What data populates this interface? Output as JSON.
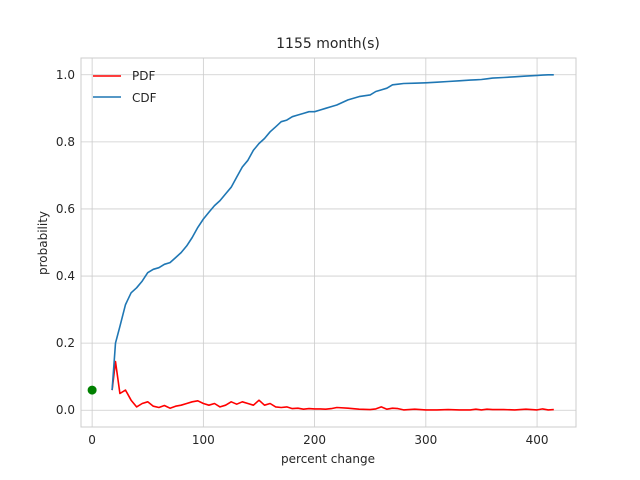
{
  "chart_data": {
    "type": "line",
    "title": "1155 month(s)",
    "xlabel": "percent change",
    "ylabel": "probability",
    "xlim": [
      -10,
      435
    ],
    "ylim": [
      -0.05,
      1.05
    ],
    "xticks": [
      0,
      100,
      200,
      300,
      400
    ],
    "yticks": [
      0.0,
      0.2,
      0.4,
      0.6,
      0.8,
      1.0
    ],
    "grid": true,
    "legend_position": "top-left",
    "series": [
      {
        "name": "PDF",
        "color": "#ff0000",
        "x": [
          18,
          21,
          25,
          30,
          35,
          40,
          45,
          50,
          55,
          60,
          65,
          70,
          75,
          80,
          85,
          90,
          95,
          100,
          105,
          110,
          115,
          120,
          125,
          130,
          135,
          140,
          145,
          150,
          155,
          160,
          165,
          170,
          175,
          180,
          185,
          190,
          195,
          200,
          205,
          210,
          215,
          220,
          230,
          240,
          250,
          255,
          260,
          265,
          270,
          275,
          280,
          290,
          300,
          310,
          320,
          330,
          340,
          345,
          350,
          355,
          360,
          370,
          380,
          390,
          400,
          405,
          410,
          415
        ],
        "y": [
          0.06,
          0.145,
          0.05,
          0.06,
          0.03,
          0.01,
          0.02,
          0.025,
          0.012,
          0.008,
          0.014,
          0.006,
          0.012,
          0.015,
          0.02,
          0.025,
          0.028,
          0.02,
          0.015,
          0.02,
          0.01,
          0.015,
          0.025,
          0.018,
          0.025,
          0.02,
          0.015,
          0.03,
          0.015,
          0.02,
          0.01,
          0.008,
          0.01,
          0.005,
          0.006,
          0.003,
          0.005,
          0.004,
          0.004,
          0.003,
          0.005,
          0.008,
          0.006,
          0.003,
          0.002,
          0.004,
          0.01,
          0.003,
          0.006,
          0.005,
          0.001,
          0.003,
          0.001,
          0.001,
          0.002,
          0.001,
          0.001,
          0.003,
          0.001,
          0.003,
          0.002,
          0.002,
          0.001,
          0.003,
          0.001,
          0.004,
          0.001,
          0.002
        ]
      },
      {
        "name": "CDF",
        "color": "#1f77b4",
        "x": [
          18,
          21,
          25,
          30,
          35,
          40,
          45,
          50,
          55,
          60,
          65,
          70,
          75,
          80,
          85,
          90,
          95,
          100,
          105,
          110,
          115,
          120,
          125,
          130,
          135,
          140,
          145,
          150,
          155,
          160,
          165,
          170,
          175,
          180,
          185,
          190,
          195,
          200,
          205,
          210,
          215,
          220,
          230,
          240,
          250,
          255,
          260,
          265,
          270,
          275,
          280,
          290,
          300,
          310,
          320,
          330,
          340,
          345,
          350,
          355,
          360,
          370,
          380,
          390,
          400,
          405,
          410,
          415
        ],
        "y": [
          0.06,
          0.2,
          0.25,
          0.315,
          0.35,
          0.365,
          0.385,
          0.41,
          0.42,
          0.425,
          0.435,
          0.44,
          0.455,
          0.47,
          0.49,
          0.515,
          0.545,
          0.57,
          0.59,
          0.61,
          0.625,
          0.645,
          0.665,
          0.695,
          0.725,
          0.745,
          0.775,
          0.795,
          0.81,
          0.83,
          0.845,
          0.86,
          0.865,
          0.875,
          0.88,
          0.885,
          0.89,
          0.89,
          0.895,
          0.9,
          0.905,
          0.91,
          0.925,
          0.935,
          0.94,
          0.95,
          0.955,
          0.96,
          0.97,
          0.972,
          0.974,
          0.975,
          0.976,
          0.978,
          0.98,
          0.982,
          0.984,
          0.985,
          0.986,
          0.988,
          0.99,
          0.992,
          0.994,
          0.996,
          0.998,
          0.999,
          1.0,
          1.0
        ]
      }
    ],
    "point": {
      "x": 0,
      "y": 0.06,
      "color": "#008000"
    }
  }
}
